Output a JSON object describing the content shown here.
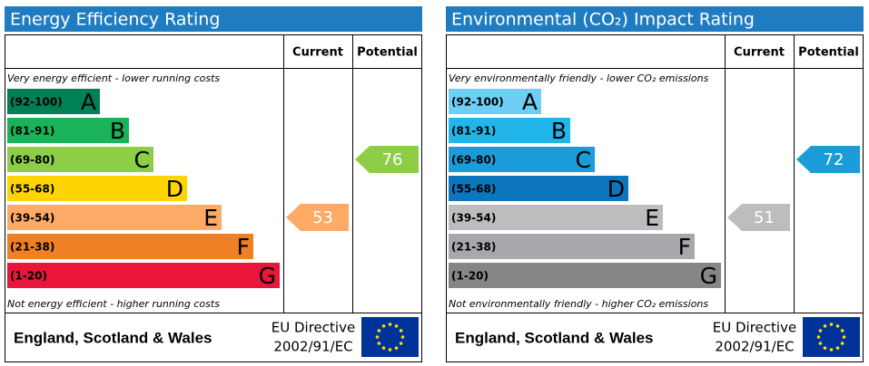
{
  "chart_data": [
    {
      "type": "rating",
      "title": "Energy Efficiency Rating",
      "top_note": "Very energy efficient - lower running costs",
      "bottom_note": "Not energy efficient - higher running costs",
      "bands": [
        {
          "range": "(92-100)",
          "letter": "A",
          "color": "#008054"
        },
        {
          "range": "(81-91)",
          "letter": "B",
          "color": "#19b459"
        },
        {
          "range": "(69-80)",
          "letter": "C",
          "color": "#8dce46"
        },
        {
          "range": "(55-68)",
          "letter": "D",
          "color": "#ffd500"
        },
        {
          "range": "(39-54)",
          "letter": "E",
          "color": "#fcaa65"
        },
        {
          "range": "(21-38)",
          "letter": "F",
          "color": "#ef8023"
        },
        {
          "range": "(1-20)",
          "letter": "G",
          "color": "#e9153b"
        }
      ],
      "series": [
        {
          "name": "Current",
          "values": [
            53
          ]
        },
        {
          "name": "Potential",
          "values": [
            76
          ]
        }
      ],
      "footer": {
        "region": "England, Scotland & Wales",
        "directive": "EU Directive",
        "code": "2002/91/EC"
      }
    },
    {
      "type": "rating",
      "title": "Environmental (CO₂) Impact Rating",
      "top_note": "Very environmentally friendly - lower CO₂ emissions",
      "bottom_note": "Not environmentally friendly - higher CO₂ emissions",
      "bands": [
        {
          "range": "(92-100)",
          "letter": "A",
          "color": "#6dcff6"
        },
        {
          "range": "(81-91)",
          "letter": "B",
          "color": "#21b6ea"
        },
        {
          "range": "(69-80)",
          "letter": "C",
          "color": "#1b9cd8"
        },
        {
          "range": "(55-68)",
          "letter": "D",
          "color": "#0b75bd"
        },
        {
          "range": "(39-54)",
          "letter": "E",
          "color": "#bbbdbf"
        },
        {
          "range": "(21-38)",
          "letter": "F",
          "color": "#a6a8ab"
        },
        {
          "range": "(1-20)",
          "letter": "G",
          "color": "#858688"
        }
      ],
      "series": [
        {
          "name": "Current",
          "values": [
            51
          ]
        },
        {
          "name": "Potential",
          "values": [
            72
          ]
        }
      ],
      "footer": {
        "region": "England, Scotland & Wales",
        "directive": "EU Directive",
        "code": "2002/91/EC"
      }
    }
  ]
}
